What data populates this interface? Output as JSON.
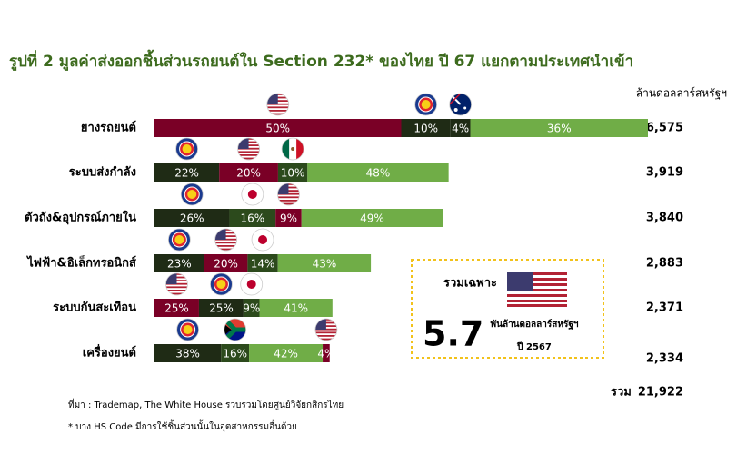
{
  "chart_data": {
    "type": "stacked-bar-horizontal",
    "title": "รูปที่ 2 มูลค่าส่งออกชิ้นส่วนรถยนต์ใน Section 232* ของไทย ปี 67 แยกตามประเทศนำเข้า",
    "unit_label": "ล้านดอลลาร์สหรัฐฯ",
    "categories": [
      "ยางรถยนต์",
      "ระบบส่งกำลัง",
      "ตัวถัง&อุปกรณ์ภายใน",
      "ไฟฟ้า&อิเล็กทรอนิกส์",
      "ระบบกันสะเทือน",
      "เครื่องยนต์"
    ],
    "totals": [
      6575,
      3919,
      3840,
      2883,
      2371,
      2334
    ],
    "total_labels": [
      "6,575",
      "3,919",
      "3,840",
      "2,883",
      "2,371",
      "2,334"
    ],
    "rows": [
      {
        "values": [
          50,
          10,
          4,
          36
        ],
        "value_labels": [
          "50%",
          "10%",
          "4%",
          "36%"
        ],
        "colors": [
          "#7a0026",
          "#1f2b15",
          "#1f2b15",
          "#70ad47"
        ]
      },
      {
        "values": [
          22,
          20,
          10,
          48
        ],
        "value_labels": [
          "22%",
          "20%",
          "10%",
          "48%"
        ],
        "colors": [
          "#1f2b15",
          "#7a0026",
          "#2c4a1c",
          "#70ad47"
        ]
      },
      {
        "values": [
          26,
          16,
          9,
          49
        ],
        "value_labels": [
          "26%",
          "16%",
          "9%",
          "49%"
        ],
        "colors": [
          "#1f2b15",
          "#2c4a1c",
          "#7a0026",
          "#70ad47"
        ]
      },
      {
        "values": [
          23,
          20,
          14,
          43
        ],
        "value_labels": [
          "23%",
          "20%",
          "14%",
          "43%"
        ],
        "colors": [
          "#1f2b15",
          "#7a0026",
          "#2c4a1c",
          "#70ad47"
        ]
      },
      {
        "values": [
          25,
          25,
          9,
          41
        ],
        "value_labels": [
          "25%",
          "25%",
          "9%",
          "41%"
        ],
        "colors": [
          "#7a0026",
          "#1f2b15",
          "#2c4a1c",
          "#70ad47"
        ]
      },
      {
        "values": [
          38,
          16,
          42,
          4
        ],
        "value_labels": [
          "38%",
          "16%",
          "42%",
          "4%"
        ],
        "colors": [
          "#1f2b15",
          "#2c4a1c",
          "#70ad47",
          "#7a0026"
        ]
      }
    ],
    "sum_label": "รวม",
    "sum_value": {
      "value": 21922,
      "label": "21,922"
    },
    "callout": {
      "heading": "รวมเฉพาะ",
      "value": 5.7,
      "unit": "พันล้านดอลลาร์สหรัฐฯ",
      "year": "ปี 2567"
    },
    "footnotes": [
      "ที่มา : Trademap, The White House รวบรวมโดยศูนย์วิจัยกสิกรไทย",
      "* บาง HS Code มีการใช้ชิ้นส่วนนั้นในอุตสาหกรรมอื่นด้วย"
    ]
  }
}
